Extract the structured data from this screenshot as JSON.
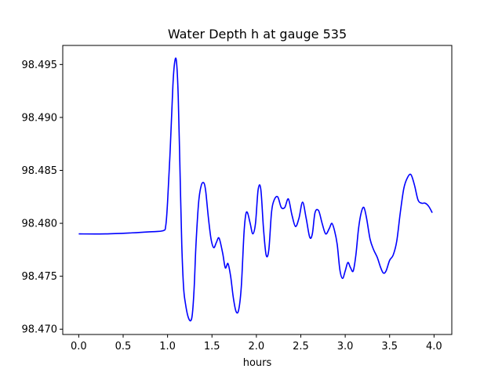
{
  "chart_data": {
    "type": "line",
    "title": "Water Depth h at gauge 535",
    "xlabel": "hours",
    "ylabel": "",
    "xlim": [
      -0.18,
      4.2
    ],
    "ylim": [
      98.4695,
      98.4968
    ],
    "xticks": [
      "0.0",
      "0.5",
      "1.0",
      "1.5",
      "2.0",
      "2.5",
      "3.0",
      "3.5",
      "4.0"
    ],
    "yticks": [
      "98.470",
      "98.475",
      "98.480",
      "98.485",
      "98.490",
      "98.495"
    ],
    "grid": false,
    "colors": {
      "line": "#0000ff",
      "axes": "#000000"
    },
    "series": [
      {
        "x": [
          0.0,
          0.3,
          0.6,
          0.8,
          0.95,
          0.98,
          1.0,
          1.03,
          1.06,
          1.08,
          1.1,
          1.12,
          1.14,
          1.16,
          1.18,
          1.2,
          1.23,
          1.26,
          1.28,
          1.3,
          1.32,
          1.35,
          1.38,
          1.41,
          1.43,
          1.46,
          1.49,
          1.52,
          1.55,
          1.58,
          1.62,
          1.65,
          1.68,
          1.71,
          1.74,
          1.77,
          1.8,
          1.83,
          1.86,
          1.88,
          1.9,
          1.93,
          1.96,
          1.99,
          2.02,
          2.05,
          2.08,
          2.11,
          2.14,
          2.17,
          2.2,
          2.24,
          2.28,
          2.32,
          2.36,
          2.4,
          2.44,
          2.48,
          2.52,
          2.56,
          2.6,
          2.63,
          2.66,
          2.7,
          2.74,
          2.78,
          2.82,
          2.85,
          2.88,
          2.91,
          2.94,
          2.97,
          3.0,
          3.03,
          3.06,
          3.09,
          3.12,
          3.15,
          3.18,
          3.21,
          3.24,
          3.28,
          3.32,
          3.36,
          3.4,
          3.43,
          3.46,
          3.5,
          3.54,
          3.58,
          3.62,
          3.66,
          3.7,
          3.74,
          3.78,
          3.82,
          3.86,
          3.9,
          3.94,
          3.98
        ],
        "values": [
          98.479,
          98.479,
          98.4791,
          98.4792,
          98.4793,
          98.4798,
          98.482,
          98.487,
          98.493,
          98.4952,
          98.4953,
          98.492,
          98.485,
          98.478,
          98.474,
          98.4725,
          98.4712,
          98.4708,
          98.4715,
          98.474,
          98.478,
          98.482,
          98.4836,
          98.4838,
          98.483,
          98.4805,
          98.4785,
          98.4777,
          98.4782,
          98.4786,
          98.4772,
          98.4758,
          98.4762,
          98.475,
          98.473,
          98.4717,
          98.4718,
          98.474,
          98.479,
          98.4808,
          98.481,
          98.48,
          98.479,
          98.48,
          98.4832,
          98.4832,
          98.4795,
          98.477,
          98.4775,
          98.481,
          98.4822,
          98.4825,
          98.4815,
          98.4815,
          98.4823,
          98.4808,
          98.4797,
          98.4805,
          98.482,
          98.4805,
          98.4787,
          98.479,
          98.481,
          98.4812,
          98.48,
          98.479,
          98.4795,
          98.48,
          98.4793,
          98.478,
          98.4756,
          98.4748,
          98.4755,
          98.4763,
          98.4758,
          98.4755,
          98.477,
          98.4795,
          98.481,
          98.4815,
          98.4805,
          98.4785,
          98.4775,
          98.4768,
          98.4758,
          98.4753,
          98.4755,
          98.4765,
          98.477,
          98.4783,
          98.481,
          98.4833,
          98.4843,
          98.4846,
          98.4836,
          98.4822,
          98.4819,
          98.4819,
          98.4816,
          98.481
        ]
      }
    ]
  }
}
